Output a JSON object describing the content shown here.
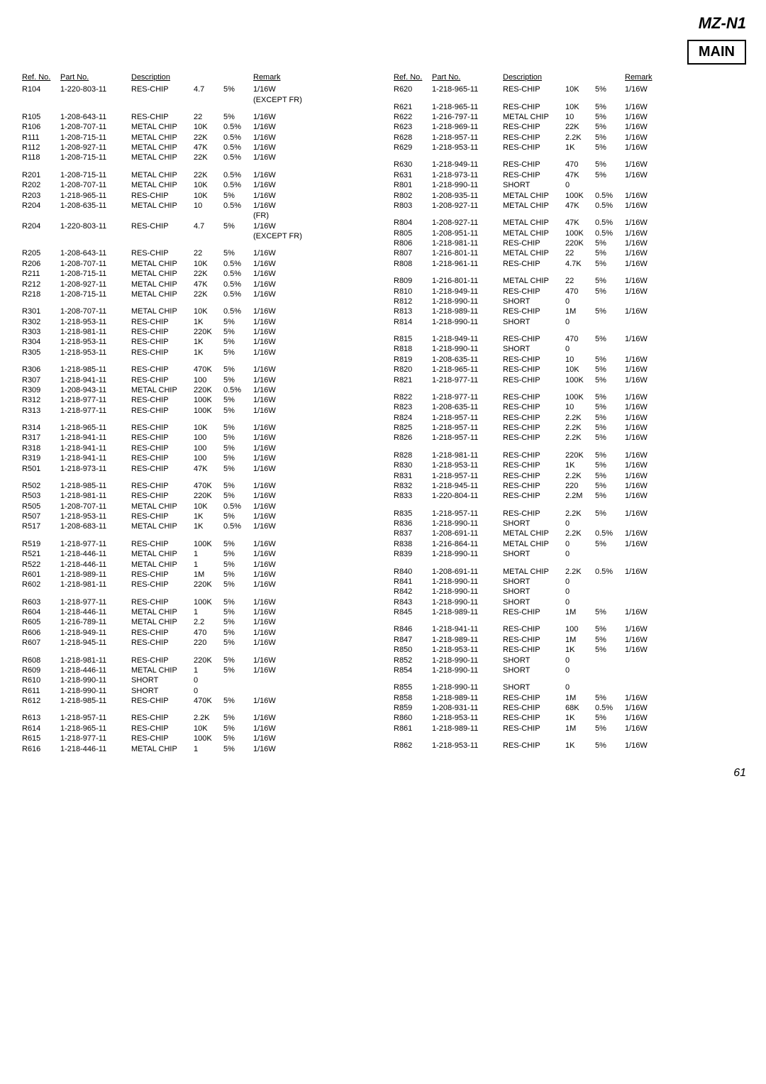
{
  "header": {
    "model": "MZ-N1",
    "box": "MAIN"
  },
  "columns": [
    "Ref. No.",
    "Part No.",
    "Description",
    "",
    "",
    "Remark"
  ],
  "page_number": "61",
  "left": [
    [
      "R104",
      "1-220-803-11",
      "RES-CHIP",
      "4.7",
      "5%",
      "1/16W"
    ],
    [
      "",
      "",
      "",
      "",
      "",
      "(EXCEPT FR)"
    ],
    [
      "spacer"
    ],
    [
      "R105",
      "1-208-643-11",
      "RES-CHIP",
      "22",
      "5%",
      "1/16W"
    ],
    [
      "R106",
      "1-208-707-11",
      "METAL CHIP",
      "10K",
      "0.5%",
      "1/16W"
    ],
    [
      "R111",
      "1-208-715-11",
      "METAL CHIP",
      "22K",
      "0.5%",
      "1/16W"
    ],
    [
      "R112",
      "1-208-927-11",
      "METAL CHIP",
      "47K",
      "0.5%",
      "1/16W"
    ],
    [
      "R118",
      "1-208-715-11",
      "METAL CHIP",
      "22K",
      "0.5%",
      "1/16W"
    ],
    [
      "spacer"
    ],
    [
      "R201",
      "1-208-715-11",
      "METAL CHIP",
      "22K",
      "0.5%",
      "1/16W"
    ],
    [
      "R202",
      "1-208-707-11",
      "METAL CHIP",
      "10K",
      "0.5%",
      "1/16W"
    ],
    [
      "R203",
      "1-218-965-11",
      "RES-CHIP",
      "10K",
      "5%",
      "1/16W"
    ],
    [
      "R204",
      "1-208-635-11",
      "METAL CHIP",
      "10",
      "0.5%",
      "1/16W"
    ],
    [
      "",
      "",
      "",
      "",
      "",
      "(FR)"
    ],
    [
      "R204",
      "1-220-803-11",
      "RES-CHIP",
      "4.7",
      "5%",
      "1/16W"
    ],
    [
      "",
      "",
      "",
      "",
      "",
      "(EXCEPT FR)"
    ],
    [
      "spacer"
    ],
    [
      "R205",
      "1-208-643-11",
      "RES-CHIP",
      "22",
      "5%",
      "1/16W"
    ],
    [
      "R206",
      "1-208-707-11",
      "METAL CHIP",
      "10K",
      "0.5%",
      "1/16W"
    ],
    [
      "R211",
      "1-208-715-11",
      "METAL CHIP",
      "22K",
      "0.5%",
      "1/16W"
    ],
    [
      "R212",
      "1-208-927-11",
      "METAL CHIP",
      "47K",
      "0.5%",
      "1/16W"
    ],
    [
      "R218",
      "1-208-715-11",
      "METAL CHIP",
      "22K",
      "0.5%",
      "1/16W"
    ],
    [
      "spacer"
    ],
    [
      "R301",
      "1-208-707-11",
      "METAL CHIP",
      "10K",
      "0.5%",
      "1/16W"
    ],
    [
      "R302",
      "1-218-953-11",
      "RES-CHIP",
      "1K",
      "5%",
      "1/16W"
    ],
    [
      "R303",
      "1-218-981-11",
      "RES-CHIP",
      "220K",
      "5%",
      "1/16W"
    ],
    [
      "R304",
      "1-218-953-11",
      "RES-CHIP",
      "1K",
      "5%",
      "1/16W"
    ],
    [
      "R305",
      "1-218-953-11",
      "RES-CHIP",
      "1K",
      "5%",
      "1/16W"
    ],
    [
      "spacer"
    ],
    [
      "R306",
      "1-218-985-11",
      "RES-CHIP",
      "470K",
      "5%",
      "1/16W"
    ],
    [
      "R307",
      "1-218-941-11",
      "RES-CHIP",
      "100",
      "5%",
      "1/16W"
    ],
    [
      "R309",
      "1-208-943-11",
      "METAL CHIP",
      "220K",
      "0.5%",
      "1/16W"
    ],
    [
      "R312",
      "1-218-977-11",
      "RES-CHIP",
      "100K",
      "5%",
      "1/16W"
    ],
    [
      "R313",
      "1-218-977-11",
      "RES-CHIP",
      "100K",
      "5%",
      "1/16W"
    ],
    [
      "spacer"
    ],
    [
      "R314",
      "1-218-965-11",
      "RES-CHIP",
      "10K",
      "5%",
      "1/16W"
    ],
    [
      "R317",
      "1-218-941-11",
      "RES-CHIP",
      "100",
      "5%",
      "1/16W"
    ],
    [
      "R318",
      "1-218-941-11",
      "RES-CHIP",
      "100",
      "5%",
      "1/16W"
    ],
    [
      "R319",
      "1-218-941-11",
      "RES-CHIP",
      "100",
      "5%",
      "1/16W"
    ],
    [
      "R501",
      "1-218-973-11",
      "RES-CHIP",
      "47K",
      "5%",
      "1/16W"
    ],
    [
      "spacer"
    ],
    [
      "R502",
      "1-218-985-11",
      "RES-CHIP",
      "470K",
      "5%",
      "1/16W"
    ],
    [
      "R503",
      "1-218-981-11",
      "RES-CHIP",
      "220K",
      "5%",
      "1/16W"
    ],
    [
      "R505",
      "1-208-707-11",
      "METAL CHIP",
      "10K",
      "0.5%",
      "1/16W"
    ],
    [
      "R507",
      "1-218-953-11",
      "RES-CHIP",
      "1K",
      "5%",
      "1/16W"
    ],
    [
      "R517",
      "1-208-683-11",
      "METAL CHIP",
      "1K",
      "0.5%",
      "1/16W"
    ],
    [
      "spacer"
    ],
    [
      "R519",
      "1-218-977-11",
      "RES-CHIP",
      "100K",
      "5%",
      "1/16W"
    ],
    [
      "R521",
      "1-218-446-11",
      "METAL CHIP",
      "1",
      "5%",
      "1/16W"
    ],
    [
      "R522",
      "1-218-446-11",
      "METAL CHIP",
      "1",
      "5%",
      "1/16W"
    ],
    [
      "R601",
      "1-218-989-11",
      "RES-CHIP",
      "1M",
      "5%",
      "1/16W"
    ],
    [
      "R602",
      "1-218-981-11",
      "RES-CHIP",
      "220K",
      "5%",
      "1/16W"
    ],
    [
      "spacer"
    ],
    [
      "R603",
      "1-218-977-11",
      "RES-CHIP",
      "100K",
      "5%",
      "1/16W"
    ],
    [
      "R604",
      "1-218-446-11",
      "METAL CHIP",
      "1",
      "5%",
      "1/16W"
    ],
    [
      "R605",
      "1-216-789-11",
      "METAL CHIP",
      "2.2",
      "5%",
      "1/16W"
    ],
    [
      "R606",
      "1-218-949-11",
      "RES-CHIP",
      "470",
      "5%",
      "1/16W"
    ],
    [
      "R607",
      "1-218-945-11",
      "RES-CHIP",
      "220",
      "5%",
      "1/16W"
    ],
    [
      "spacer"
    ],
    [
      "R608",
      "1-218-981-11",
      "RES-CHIP",
      "220K",
      "5%",
      "1/16W"
    ],
    [
      "R609",
      "1-218-446-11",
      "METAL CHIP",
      "1",
      "5%",
      "1/16W"
    ],
    [
      "R610",
      "1-218-990-11",
      "SHORT",
      "0",
      "",
      ""
    ],
    [
      "R611",
      "1-218-990-11",
      "SHORT",
      "0",
      "",
      ""
    ],
    [
      "R612",
      "1-218-985-11",
      "RES-CHIP",
      "470K",
      "5%",
      "1/16W"
    ],
    [
      "spacer"
    ],
    [
      "R613",
      "1-218-957-11",
      "RES-CHIP",
      "2.2K",
      "5%",
      "1/16W"
    ],
    [
      "R614",
      "1-218-965-11",
      "RES-CHIP",
      "10K",
      "5%",
      "1/16W"
    ],
    [
      "R615",
      "1-218-977-11",
      "RES-CHIP",
      "100K",
      "5%",
      "1/16W"
    ],
    [
      "R616",
      "1-218-446-11",
      "METAL CHIP",
      "1",
      "5%",
      "1/16W"
    ]
  ],
  "right": [
    [
      "R620",
      "1-218-965-11",
      "RES-CHIP",
      "10K",
      "5%",
      "1/16W"
    ],
    [
      "spacer"
    ],
    [
      "R621",
      "1-218-965-11",
      "RES-CHIP",
      "10K",
      "5%",
      "1/16W"
    ],
    [
      "R622",
      "1-216-797-11",
      "METAL CHIP",
      "10",
      "5%",
      "1/16W"
    ],
    [
      "R623",
      "1-218-969-11",
      "RES-CHIP",
      "22K",
      "5%",
      "1/16W"
    ],
    [
      "R628",
      "1-218-957-11",
      "RES-CHIP",
      "2.2K",
      "5%",
      "1/16W"
    ],
    [
      "R629",
      "1-218-953-11",
      "RES-CHIP",
      "1K",
      "5%",
      "1/16W"
    ],
    [
      "spacer"
    ],
    [
      "R630",
      "1-218-949-11",
      "RES-CHIP",
      "470",
      "5%",
      "1/16W"
    ],
    [
      "R631",
      "1-218-973-11",
      "RES-CHIP",
      "47K",
      "5%",
      "1/16W"
    ],
    [
      "R801",
      "1-218-990-11",
      "SHORT",
      "0",
      "",
      ""
    ],
    [
      "R802",
      "1-208-935-11",
      "METAL CHIP",
      "100K",
      "0.5%",
      "1/16W"
    ],
    [
      "R803",
      "1-208-927-11",
      "METAL CHIP",
      "47K",
      "0.5%",
      "1/16W"
    ],
    [
      "spacer"
    ],
    [
      "R804",
      "1-208-927-11",
      "METAL CHIP",
      "47K",
      "0.5%",
      "1/16W"
    ],
    [
      "R805",
      "1-208-951-11",
      "METAL CHIP",
      "100K",
      "0.5%",
      "1/16W"
    ],
    [
      "R806",
      "1-218-981-11",
      "RES-CHIP",
      "220K",
      "5%",
      "1/16W"
    ],
    [
      "R807",
      "1-216-801-11",
      "METAL CHIP",
      "22",
      "5%",
      "1/16W"
    ],
    [
      "R808",
      "1-218-961-11",
      "RES-CHIP",
      "4.7K",
      "5%",
      "1/16W"
    ],
    [
      "spacer"
    ],
    [
      "R809",
      "1-216-801-11",
      "METAL CHIP",
      "22",
      "5%",
      "1/16W"
    ],
    [
      "R810",
      "1-218-949-11",
      "RES-CHIP",
      "470",
      "5%",
      "1/16W"
    ],
    [
      "R812",
      "1-218-990-11",
      "SHORT",
      "0",
      "",
      ""
    ],
    [
      "R813",
      "1-218-989-11",
      "RES-CHIP",
      "1M",
      "5%",
      "1/16W"
    ],
    [
      "R814",
      "1-218-990-11",
      "SHORT",
      "0",
      "",
      ""
    ],
    [
      "spacer"
    ],
    [
      "R815",
      "1-218-949-11",
      "RES-CHIP",
      "470",
      "5%",
      "1/16W"
    ],
    [
      "R818",
      "1-218-990-11",
      "SHORT",
      "0",
      "",
      ""
    ],
    [
      "R819",
      "1-208-635-11",
      "RES-CHIP",
      "10",
      "5%",
      "1/16W"
    ],
    [
      "R820",
      "1-218-965-11",
      "RES-CHIP",
      "10K",
      "5%",
      "1/16W"
    ],
    [
      "R821",
      "1-218-977-11",
      "RES-CHIP",
      "100K",
      "5%",
      "1/16W"
    ],
    [
      "spacer"
    ],
    [
      "R822",
      "1-218-977-11",
      "RES-CHIP",
      "100K",
      "5%",
      "1/16W"
    ],
    [
      "R823",
      "1-208-635-11",
      "RES-CHIP",
      "10",
      "5%",
      "1/16W"
    ],
    [
      "R824",
      "1-218-957-11",
      "RES-CHIP",
      "2.2K",
      "5%",
      "1/16W"
    ],
    [
      "R825",
      "1-218-957-11",
      "RES-CHIP",
      "2.2K",
      "5%",
      "1/16W"
    ],
    [
      "R826",
      "1-218-957-11",
      "RES-CHIP",
      "2.2K",
      "5%",
      "1/16W"
    ],
    [
      "spacer"
    ],
    [
      "R828",
      "1-218-981-11",
      "RES-CHIP",
      "220K",
      "5%",
      "1/16W"
    ],
    [
      "R830",
      "1-218-953-11",
      "RES-CHIP",
      "1K",
      "5%",
      "1/16W"
    ],
    [
      "R831",
      "1-218-957-11",
      "RES-CHIP",
      "2.2K",
      "5%",
      "1/16W"
    ],
    [
      "R832",
      "1-218-945-11",
      "RES-CHIP",
      "220",
      "5%",
      "1/16W"
    ],
    [
      "R833",
      "1-220-804-11",
      "RES-CHIP",
      "2.2M",
      "5%",
      "1/16W"
    ],
    [
      "spacer"
    ],
    [
      "R835",
      "1-218-957-11",
      "RES-CHIP",
      "2.2K",
      "5%",
      "1/16W"
    ],
    [
      "R836",
      "1-218-990-11",
      "SHORT",
      "0",
      "",
      ""
    ],
    [
      "R837",
      "1-208-691-11",
      "METAL CHIP",
      "2.2K",
      "0.5%",
      "1/16W"
    ],
    [
      "R838",
      "1-216-864-11",
      "METAL CHIP",
      "0",
      "5%",
      "1/16W"
    ],
    [
      "R839",
      "1-218-990-11",
      "SHORT",
      "0",
      "",
      ""
    ],
    [
      "spacer"
    ],
    [
      "R840",
      "1-208-691-11",
      "METAL CHIP",
      "2.2K",
      "0.5%",
      "1/16W"
    ],
    [
      "R841",
      "1-218-990-11",
      "SHORT",
      "0",
      "",
      ""
    ],
    [
      "R842",
      "1-218-990-11",
      "SHORT",
      "0",
      "",
      ""
    ],
    [
      "R843",
      "1-218-990-11",
      "SHORT",
      "0",
      "",
      ""
    ],
    [
      "R845",
      "1-218-989-11",
      "RES-CHIP",
      "1M",
      "5%",
      "1/16W"
    ],
    [
      "spacer"
    ],
    [
      "R846",
      "1-218-941-11",
      "RES-CHIP",
      "100",
      "5%",
      "1/16W"
    ],
    [
      "R847",
      "1-218-989-11",
      "RES-CHIP",
      "1M",
      "5%",
      "1/16W"
    ],
    [
      "R850",
      "1-218-953-11",
      "RES-CHIP",
      "1K",
      "5%",
      "1/16W"
    ],
    [
      "R852",
      "1-218-990-11",
      "SHORT",
      "0",
      "",
      ""
    ],
    [
      "R854",
      "1-218-990-11",
      "SHORT",
      "0",
      "",
      ""
    ],
    [
      "spacer"
    ],
    [
      "R855",
      "1-218-990-11",
      "SHORT",
      "0",
      "",
      ""
    ],
    [
      "R858",
      "1-218-989-11",
      "RES-CHIP",
      "1M",
      "5%",
      "1/16W"
    ],
    [
      "R859",
      "1-208-931-11",
      "RES-CHIP",
      "68K",
      "0.5%",
      "1/16W"
    ],
    [
      "R860",
      "1-218-953-11",
      "RES-CHIP",
      "1K",
      "5%",
      "1/16W"
    ],
    [
      "R861",
      "1-218-989-11",
      "RES-CHIP",
      "1M",
      "5%",
      "1/16W"
    ],
    [
      "spacer"
    ],
    [
      "R862",
      "1-218-953-11",
      "RES-CHIP",
      "1K",
      "5%",
      "1/16W"
    ]
  ]
}
